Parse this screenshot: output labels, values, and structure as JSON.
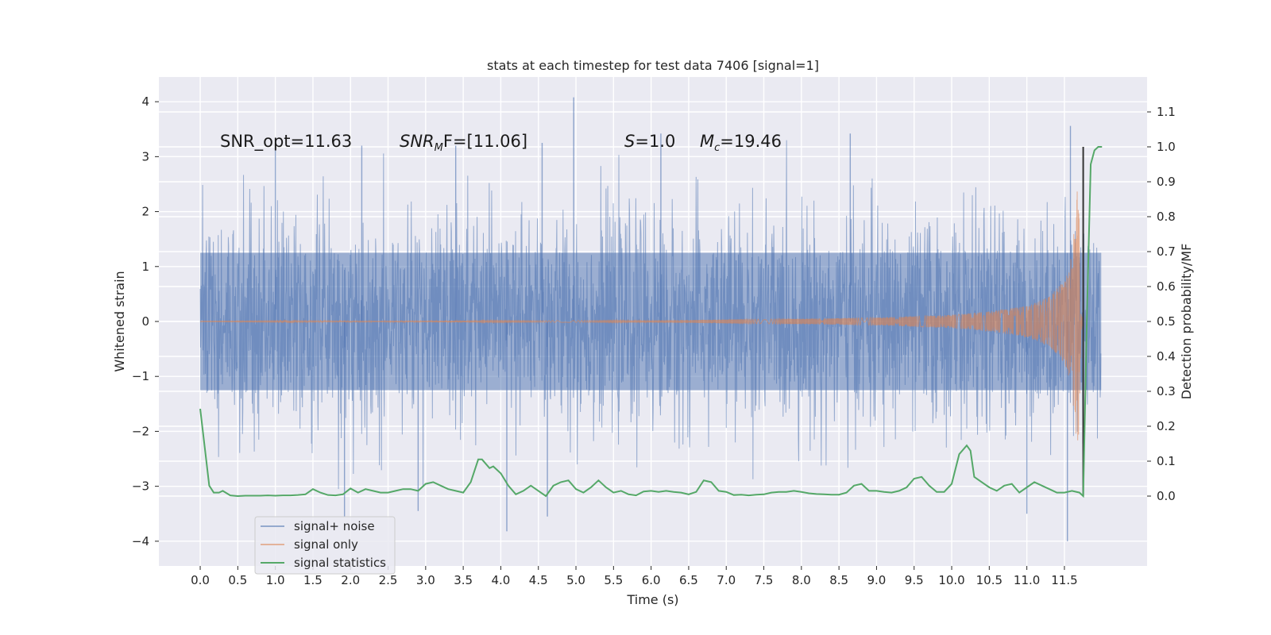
{
  "chart_data": {
    "type": "line",
    "title": "stats at each timestep for test data 7406 [signal=1]",
    "xlabel": "Time (s)",
    "ylabel": "Whitened strain",
    "y2label": "Detection probability/MF",
    "xlim": [
      -0.55,
      12.6
    ],
    "ylim": [
      -4.45,
      4.45
    ],
    "y2lim": [
      -0.2,
      1.2
    ],
    "x_ticks": [
      0.0,
      0.5,
      1.0,
      1.5,
      2.0,
      2.5,
      3.0,
      3.5,
      4.0,
      4.5,
      5.0,
      5.5,
      6.0,
      6.5,
      7.0,
      7.5,
      8.0,
      8.5,
      9.0,
      9.5,
      10.0,
      10.5,
      11.0,
      11.5
    ],
    "x_tick_labels": [
      "0.0",
      "0.5",
      "1.0",
      "1.5",
      "2.0",
      "2.5",
      "3.0",
      "3.5",
      "4.0",
      "4.5",
      "5.0",
      "5.5",
      "6.0",
      "6.5",
      "7.0",
      "7.5",
      "8.0",
      "8.5",
      "9.0",
      "9.5",
      "10.0",
      "10.5",
      "11.0",
      "11.5"
    ],
    "y_ticks": [
      -4,
      -3,
      -2,
      -1,
      0,
      1,
      2,
      3,
      4
    ],
    "y_tick_labels": [
      "−4",
      "−3",
      "−2",
      "−1",
      "0",
      "1",
      "2",
      "3",
      "4"
    ],
    "y2_ticks": [
      0.0,
      0.1,
      0.2,
      0.3,
      0.4,
      0.5,
      0.6,
      0.7,
      0.8,
      0.9,
      1.0,
      1.1
    ],
    "y2_tick_labels": [
      "0.0",
      "0.1",
      "0.2",
      "0.3",
      "0.4",
      "0.5",
      "0.6",
      "0.7",
      "0.8",
      "0.9",
      "1.0",
      "1.1"
    ],
    "grid": true,
    "legend_position": "lower-left",
    "annotations": [
      {
        "text": "SNR_opt=11.63",
        "x": 0.2,
        "y": 3.28
      },
      {
        "text": "SNR_MF=[11.06]",
        "x": 2.6,
        "y": 3.28,
        "italic_part": "SNR",
        "subscript": "M",
        "rest": "F=[11.06]"
      },
      {
        "text": "S=1.0",
        "x": 5.6,
        "y": 3.28,
        "italic_part": "S",
        "rest": "=1.0"
      },
      {
        "text": "M_c=19.46",
        "x": 6.6,
        "y": 3.28,
        "italic_part": "M",
        "subscript": "c",
        "rest": "=19.46"
      }
    ],
    "event_marker": {
      "x": 11.75,
      "y2_range": [
        0.0,
        1.0
      ],
      "color": "#333333"
    },
    "series": [
      {
        "name": "signal+ noise",
        "axis": "left",
        "color": "#4c72b0",
        "opacity": 0.5,
        "t_start": 0.0,
        "t_end": 11.99,
        "envelope": "noise band, typical |h| ~ 1.3, peaks to about 4.1 / -4.0",
        "peaks": [
          {
            "x": 1.0,
            "y": 3.2
          },
          {
            "x": 2.15,
            "y": 3.2
          },
          {
            "x": 3.4,
            "y": 3.2
          },
          {
            "x": 4.55,
            "y": 3.25
          },
          {
            "x": 4.97,
            "y": 4.08
          },
          {
            "x": 6.13,
            "y": 3.42
          },
          {
            "x": 8.65,
            "y": 3.42
          },
          {
            "x": 11.58,
            "y": 3.56
          },
          {
            "x": 1.92,
            "y": -3.55
          },
          {
            "x": 2.9,
            "y": -3.45
          },
          {
            "x": 4.08,
            "y": -3.82
          },
          {
            "x": 4.62,
            "y": -3.55
          },
          {
            "x": 11.0,
            "y": -3.5
          },
          {
            "x": 11.54,
            "y": -4.0
          }
        ]
      },
      {
        "name": "signal only",
        "axis": "left",
        "color": "#dd8452",
        "opacity": 0.5,
        "amplitude_points": [
          [
            0.0,
            0.005
          ],
          [
            6.0,
            0.02
          ],
          [
            8.0,
            0.05
          ],
          [
            9.0,
            0.07
          ],
          [
            10.0,
            0.12
          ],
          [
            10.5,
            0.18
          ],
          [
            11.0,
            0.28
          ],
          [
            11.3,
            0.45
          ],
          [
            11.5,
            0.75
          ],
          [
            11.6,
            1.2
          ],
          [
            11.67,
            2.5
          ],
          [
            11.7,
            1.8
          ],
          [
            11.72,
            0.2
          ],
          [
            11.75,
            0.0
          ]
        ]
      },
      {
        "name": "signal statistics",
        "axis": "right",
        "color": "#55a868",
        "x": [
          0.0,
          0.06,
          0.12,
          0.18,
          0.25,
          0.3,
          0.4,
          0.5,
          0.6,
          0.7,
          0.8,
          0.9,
          1.0,
          1.1,
          1.2,
          1.3,
          1.4,
          1.5,
          1.6,
          1.7,
          1.8,
          1.9,
          2.0,
          2.1,
          2.2,
          2.3,
          2.4,
          2.5,
          2.6,
          2.7,
          2.8,
          2.9,
          3.0,
          3.1,
          3.2,
          3.3,
          3.4,
          3.5,
          3.6,
          3.7,
          3.75,
          3.85,
          3.9,
          4.0,
          4.1,
          4.2,
          4.3,
          4.4,
          4.5,
          4.6,
          4.7,
          4.8,
          4.9,
          5.0,
          5.1,
          5.2,
          5.3,
          5.4,
          5.5,
          5.6,
          5.7,
          5.8,
          5.9,
          6.0,
          6.1,
          6.2,
          6.3,
          6.4,
          6.5,
          6.6,
          6.7,
          6.8,
          6.9,
          7.0,
          7.1,
          7.2,
          7.3,
          7.4,
          7.5,
          7.6,
          7.7,
          7.8,
          7.9,
          8.0,
          8.1,
          8.2,
          8.3,
          8.4,
          8.5,
          8.6,
          8.7,
          8.8,
          8.9,
          9.0,
          9.1,
          9.2,
          9.3,
          9.4,
          9.5,
          9.6,
          9.7,
          9.8,
          9.9,
          10.0,
          10.1,
          10.2,
          10.25,
          10.3,
          10.4,
          10.5,
          10.6,
          10.7,
          10.8,
          10.9,
          11.0,
          11.1,
          11.2,
          11.3,
          11.4,
          11.5,
          11.6,
          11.7,
          11.75,
          11.8,
          11.85,
          11.9,
          11.95,
          12.0
        ],
        "y": [
          0.25,
          0.14,
          0.03,
          0.01,
          0.01,
          0.015,
          0.002,
          0.0,
          0.001,
          0.001,
          0.001,
          0.002,
          0.001,
          0.002,
          0.002,
          0.003,
          0.005,
          0.02,
          0.01,
          0.003,
          0.002,
          0.005,
          0.022,
          0.01,
          0.02,
          0.015,
          0.01,
          0.01,
          0.015,
          0.02,
          0.02,
          0.015,
          0.035,
          0.04,
          0.03,
          0.02,
          0.015,
          0.01,
          0.04,
          0.105,
          0.105,
          0.08,
          0.085,
          0.065,
          0.03,
          0.005,
          0.015,
          0.03,
          0.015,
          0.0,
          0.03,
          0.04,
          0.045,
          0.02,
          0.01,
          0.025,
          0.045,
          0.025,
          0.01,
          0.015,
          0.005,
          0.002,
          0.013,
          0.015,
          0.012,
          0.015,
          0.012,
          0.01,
          0.005,
          0.012,
          0.045,
          0.04,
          0.015,
          0.012,
          0.003,
          0.004,
          0.002,
          0.004,
          0.005,
          0.01,
          0.012,
          0.012,
          0.015,
          0.012,
          0.008,
          0.006,
          0.005,
          0.004,
          0.004,
          0.01,
          0.03,
          0.035,
          0.015,
          0.015,
          0.012,
          0.01,
          0.015,
          0.025,
          0.05,
          0.055,
          0.03,
          0.012,
          0.012,
          0.035,
          0.12,
          0.145,
          0.13,
          0.055,
          0.04,
          0.025,
          0.015,
          0.03,
          0.035,
          0.01,
          0.025,
          0.04,
          0.03,
          0.02,
          0.01,
          0.01,
          0.015,
          0.01,
          0.0,
          0.52,
          0.95,
          0.99,
          1.0,
          1.0
        ]
      }
    ]
  }
}
